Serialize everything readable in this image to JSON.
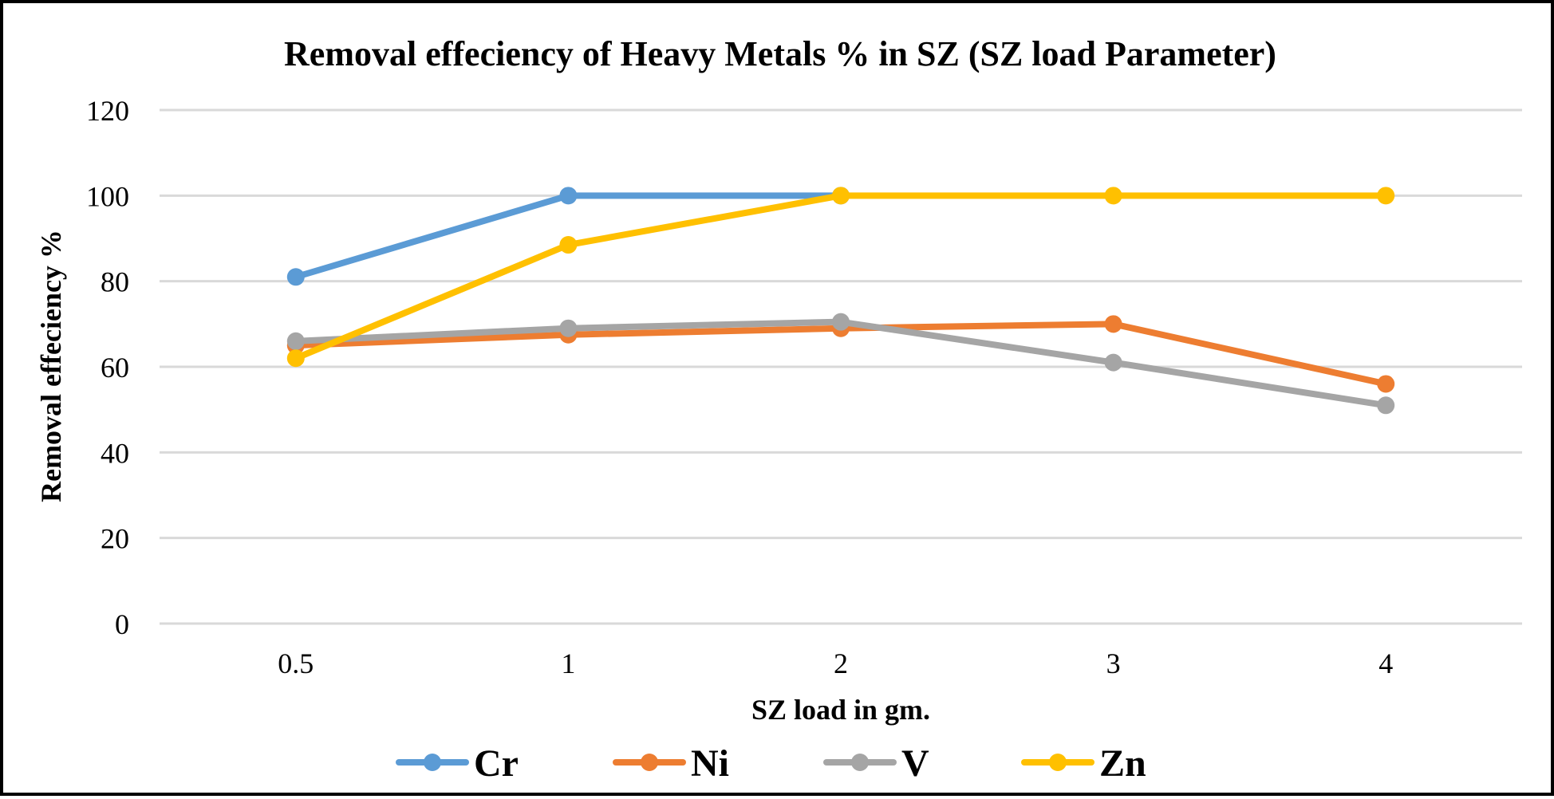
{
  "chart_data": {
    "type": "line",
    "title": "Removal effeciency of Heavy Metals % in SZ (SZ load Parameter)",
    "xlabel": "SZ load in gm.",
    "ylabel": "Removal effeciency %",
    "categories": [
      "0.5",
      "1",
      "2",
      "3",
      "4"
    ],
    "ylim": [
      0,
      120
    ],
    "yticks": [
      "0",
      "20",
      "40",
      "60",
      "80",
      "100",
      "120"
    ],
    "grid": true,
    "legend_position": "bottom",
    "series": [
      {
        "name": "Cr",
        "color": "#5b9bd5",
        "values": [
          81,
          100,
          100,
          null,
          null
        ]
      },
      {
        "name": "Ni",
        "color": "#ed7d31",
        "values": [
          65,
          67.5,
          69,
          70,
          56
        ]
      },
      {
        "name": "V",
        "color": "#a5a5a5",
        "values": [
          66,
          69,
          70.5,
          61,
          51
        ]
      },
      {
        "name": "Zn",
        "color": "#ffc000",
        "values": [
          62,
          88.5,
          100,
          100,
          100
        ]
      }
    ]
  }
}
